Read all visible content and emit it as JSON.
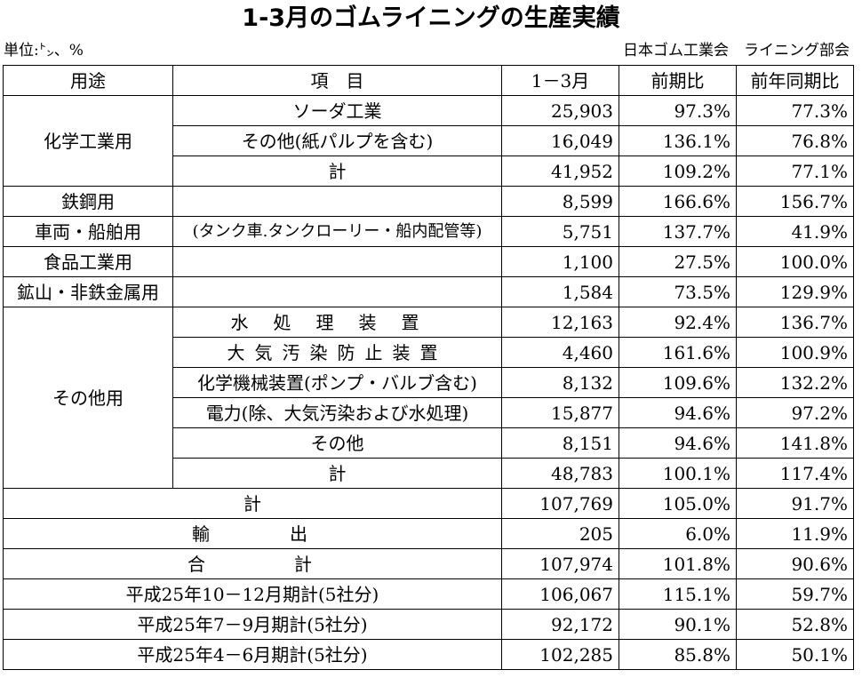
{
  "title": "1-3月のゴムライニングの生産実績",
  "unit": "単位:㌧、%",
  "org": "日本ゴム工業会　ライニング部会",
  "headers": {
    "use": "用途",
    "item": "項　目",
    "period": "1－3月",
    "prev": "前期比",
    "yoy": "前年同期比"
  },
  "rows": {
    "chem": {
      "label": "化学工業用",
      "soda": {
        "item": "ソーダ工業",
        "v": "25,903",
        "p": "97.3%",
        "y": "77.3%"
      },
      "other": {
        "item": "その他(紙パルプを含む)",
        "v": "16,049",
        "p": "136.1%",
        "y": "76.8%"
      },
      "total": {
        "item": "計",
        "v": "41,952",
        "p": "109.2%",
        "y": "77.1%"
      }
    },
    "steel": {
      "label": "鉄鋼用",
      "item": "",
      "v": "8,599",
      "p": "166.6%",
      "y": "156.7%"
    },
    "vehicle": {
      "label": "車両・船舶用",
      "item": "(タンク車.タンクローリー・船内配管等)",
      "v": "5,751",
      "p": "137.7%",
      "y": "41.9%"
    },
    "food": {
      "label": "食品工業用",
      "item": "",
      "v": "1,100",
      "p": "27.5%",
      "y": "100.0%"
    },
    "mining": {
      "label": "鉱山・非鉄金属用",
      "item": "",
      "v": "1,584",
      "p": "73.5%",
      "y": "129.9%"
    },
    "others": {
      "label": "その他用",
      "water": {
        "item": "水処理装置",
        "v": "12,163",
        "p": "92.4%",
        "y": "136.7%"
      },
      "air": {
        "item": "大気汚染防止装置",
        "v": "4,460",
        "p": "161.6%",
        "y": "100.9%"
      },
      "machine": {
        "item": "化学機械装置(ポンプ・バルブ含む)",
        "v": "8,132",
        "p": "109.6%",
        "y": "132.2%"
      },
      "power": {
        "item": "電力(除、大気汚染および水処理)",
        "v": "15,877",
        "p": "94.6%",
        "y": "97.2%"
      },
      "misc": {
        "item": "その他",
        "v": "8,151",
        "p": "94.6%",
        "y": "141.8%"
      },
      "total": {
        "item": "計",
        "v": "48,783",
        "p": "100.1%",
        "y": "117.4%"
      }
    },
    "subtotal": {
      "label": "計",
      "v": "107,769",
      "p": "105.0%",
      "y": "91.7%"
    },
    "export": {
      "label": "輸出",
      "v": "205",
      "p": "6.0%",
      "y": "11.9%"
    },
    "grand": {
      "label": "合計",
      "v": "107,974",
      "p": "101.8%",
      "y": "90.6%"
    },
    "h25q4": {
      "label": "平成25年10－12月期計(5社分)",
      "v": "106,067",
      "p": "115.1%",
      "y": "59.7%"
    },
    "h25q3": {
      "label": "平成25年7－9月期計(5社分)",
      "v": "92,172",
      "p": "90.1%",
      "y": "52.8%"
    },
    "h25q2": {
      "label": "平成25年4－6月期計(5社分)",
      "v": "102,285",
      "p": "85.8%",
      "y": "50.1%"
    }
  }
}
